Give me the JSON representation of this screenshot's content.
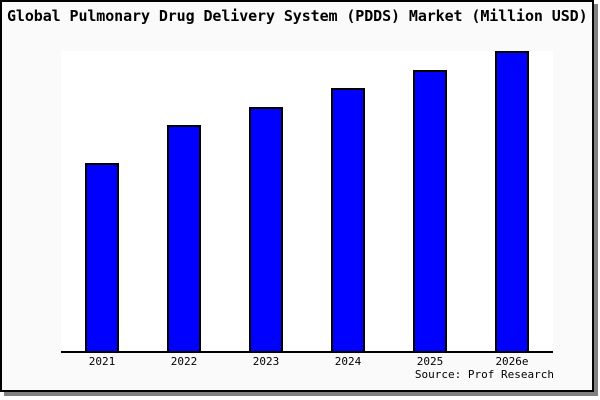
{
  "window": {
    "background": "#ffffff",
    "card_background": "#fafafa",
    "border_color": "#000000",
    "shadow_color": "#808080"
  },
  "chart_data": {
    "type": "bar",
    "title": "Global Pulmonary Drug Delivery System (PDDS) Market (Million USD)",
    "categories": [
      "2021",
      "2022",
      "2023",
      "2024",
      "2025",
      "2026e"
    ],
    "values": [
      189,
      227,
      245,
      264,
      282,
      301
    ],
    "value_note": "no y-axis ticks shown; values are relative bar heights in px",
    "xlabel": "",
    "ylabel": "",
    "ylim": [
      0,
      310
    ],
    "grid": false,
    "legend": false,
    "bar_color": "#0000ff",
    "bar_border_color": "#000000",
    "axis_color": "#000000",
    "source_note": "Source: Prof Research"
  }
}
